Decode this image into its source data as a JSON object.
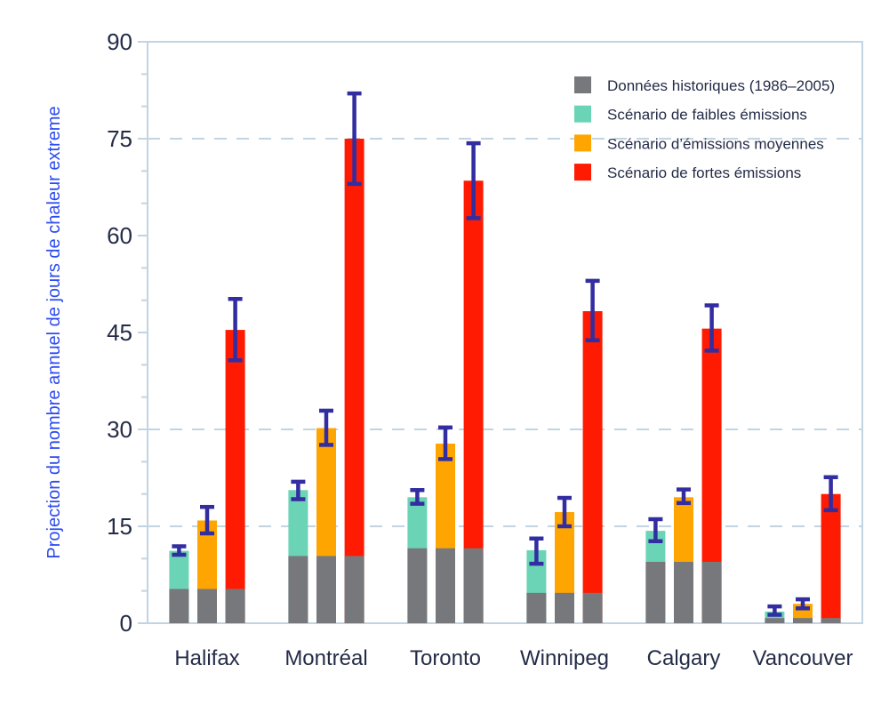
{
  "chart_data": {
    "type": "bar",
    "stacked": true,
    "title": "",
    "xlabel": "",
    "ylabel": "Projection du nombre annuel de jours de chaleur extreme",
    "ylim": [
      0,
      90
    ],
    "y_major_ticks": [
      0,
      15,
      30,
      45,
      60,
      75,
      90
    ],
    "y_minor_step": 5,
    "dashed_gridlines_at": [
      15,
      30,
      75
    ],
    "grid": "dashed-partial",
    "legend_position": "top-right-inside",
    "categories": [
      "Halifax",
      "Montréal",
      "Toronto",
      "Winnipeg",
      "Calgary",
      "Vancouver"
    ],
    "series": [
      {
        "name": "Données historiques (1986–2005)",
        "role": "base",
        "color": "#77787C",
        "values": [
          5.3,
          10.4,
          11.6,
          4.7,
          9.5,
          0.8
        ]
      },
      {
        "name": "Scénario de faibles émissions",
        "role": "scenario",
        "color": "#6BD4B6",
        "totals": [
          11.2,
          20.6,
          19.5,
          11.3,
          14.3,
          1.8
        ],
        "error_low": [
          10.6,
          19.2,
          18.5,
          9.2,
          12.7,
          1.3
        ],
        "error_high": [
          11.9,
          21.9,
          20.6,
          13.1,
          16.1,
          2.6
        ]
      },
      {
        "name": "Scénario d’émissions moyennes",
        "role": "scenario",
        "color": "#FFA502",
        "totals": [
          15.9,
          30.2,
          27.8,
          17.2,
          19.5,
          3.0
        ],
        "error_low": [
          13.9,
          27.6,
          25.4,
          15.0,
          18.6,
          2.3
        ],
        "error_high": [
          18.0,
          32.9,
          30.3,
          19.4,
          20.7,
          3.7
        ]
      },
      {
        "name": "Scénario de fortes émissions",
        "role": "scenario",
        "color": "#FE1B01",
        "totals": [
          45.4,
          75.0,
          68.5,
          48.3,
          45.6,
          20.0
        ],
        "error_low": [
          40.7,
          68.0,
          62.7,
          43.8,
          42.2,
          17.5
        ],
        "error_high": [
          50.2,
          82.0,
          74.3,
          53.0,
          49.2,
          22.6
        ]
      }
    ],
    "colors": {
      "error_bar": "#322DA0",
      "axis_box": "#C2D4E2",
      "gridline": "#C2D4E2",
      "tick_label": "#242C47",
      "category_label": "#242C47",
      "legend_text": "#242C47",
      "y_axis_title": "#2D4BF0",
      "background": "#FFFFFF"
    }
  }
}
